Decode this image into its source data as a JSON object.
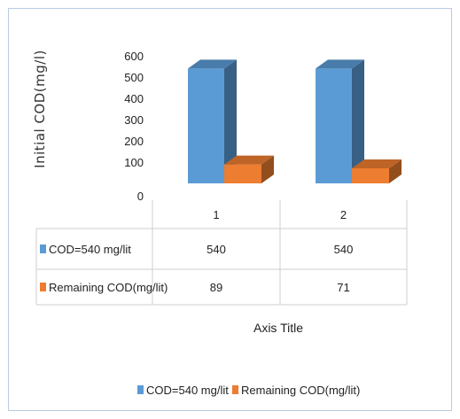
{
  "chart_data": {
    "type": "bar",
    "style": "3d-column-with-data-table",
    "title": "",
    "ylabel": "Initial  COD(mg/l)",
    "xlabel": "Axis Title",
    "ylim": [
      0,
      600
    ],
    "yticks": [
      "0",
      "100",
      "200",
      "300",
      "400",
      "500",
      "600"
    ],
    "categories": [
      "1",
      "2"
    ],
    "series": [
      {
        "name": "COD=540 mg/lit",
        "color": "#5b9bd5",
        "values": [
          540,
          540
        ]
      },
      {
        "name": "Remaining COD(mg/lit)",
        "color": "#ed7d31",
        "values": [
          89,
          71
        ]
      }
    ],
    "table_values": [
      [
        "540",
        "540"
      ],
      [
        "89",
        "71"
      ]
    ],
    "legend": "bottom"
  }
}
